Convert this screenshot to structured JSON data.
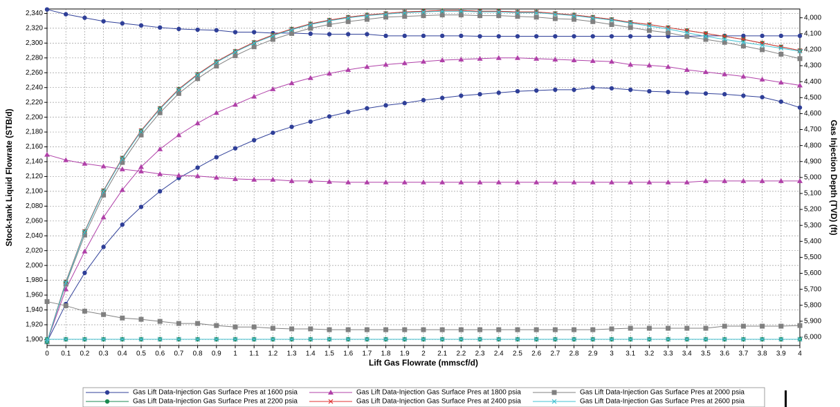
{
  "chart_data": {
    "type": "line",
    "x_label": "Lift Gas Flowrate (mmscf/d)",
    "y_label": "Stock-tank Liquid Flowrate (STB/d)",
    "y2_label": "Gas Injection Depth (TVD) (ft)",
    "x": [
      0,
      0.1,
      0.2,
      0.3,
      0.4,
      0.5,
      0.6,
      0.7,
      0.8,
      0.9,
      1,
      1.1,
      1.2,
      1.3,
      1.4,
      1.5,
      1.6,
      1.7,
      1.8,
      1.9,
      2,
      2.1,
      2.2,
      2.3,
      2.4,
      2.5,
      2.6,
      2.7,
      2.8,
      2.9,
      3,
      3.1,
      3.2,
      3.3,
      3.4,
      3.5,
      3.6,
      3.7,
      3.8,
      3.9,
      4
    ],
    "xlim": [
      0,
      4
    ],
    "xticks": [
      0,
      0.1,
      0.2,
      0.3,
      0.4,
      0.5,
      0.6,
      0.7,
      0.8,
      0.9,
      1,
      1.1,
      1.2,
      1.3,
      1.4,
      1.5,
      1.6,
      1.7,
      1.8,
      1.9,
      2,
      2.1,
      2.2,
      2.3,
      2.4,
      2.5,
      2.6,
      2.7,
      2.8,
      2.9,
      3,
      3.1,
      3.2,
      3.3,
      3.4,
      3.5,
      3.6,
      3.7,
      3.8,
      3.9,
      4
    ],
    "ylim": [
      1892,
      2346
    ],
    "yticks": [
      {
        "value": 1900,
        "label": "1,900"
      },
      {
        "value": 1920,
        "label": "1,920"
      },
      {
        "value": 1940,
        "label": "1,940"
      },
      {
        "value": 1960,
        "label": "1,960"
      },
      {
        "value": 1980,
        "label": "1,980"
      },
      {
        "value": 2000,
        "label": "2,000"
      },
      {
        "value": 2020,
        "label": "2,020"
      },
      {
        "value": 2040,
        "label": "2,040"
      },
      {
        "value": 2060,
        "label": "2,060"
      },
      {
        "value": 2080,
        "label": "2,080"
      },
      {
        "value": 2100,
        "label": "2,100"
      },
      {
        "value": 2120,
        "label": "2,120"
      },
      {
        "value": 2140,
        "label": "2,140"
      },
      {
        "value": 2160,
        "label": "2,160"
      },
      {
        "value": 2180,
        "label": "2,180"
      },
      {
        "value": 2200,
        "label": "2,200"
      },
      {
        "value": 2220,
        "label": "2,220"
      },
      {
        "value": 2240,
        "label": "2,240"
      },
      {
        "value": 2260,
        "label": "2,260"
      },
      {
        "value": 2280,
        "label": "2,280"
      },
      {
        "value": 2300,
        "label": "2,300"
      },
      {
        "value": 2320,
        "label": "2,320"
      },
      {
        "value": 2340,
        "label": "2,340"
      }
    ],
    "y2lim": [
      6052,
      3945
    ],
    "y2ticks": [
      {
        "value": 4000,
        "label": "4,000"
      },
      {
        "value": 4100,
        "label": "4,100"
      },
      {
        "value": 4200,
        "label": "4,200"
      },
      {
        "value": 4300,
        "label": "4,300"
      },
      {
        "value": 4400,
        "label": "4,400"
      },
      {
        "value": 4500,
        "label": "4,500"
      },
      {
        "value": 4600,
        "label": "4,600"
      },
      {
        "value": 4700,
        "label": "4,700"
      },
      {
        "value": 4800,
        "label": "4,800"
      },
      {
        "value": 4900,
        "label": "4,900"
      },
      {
        "value": 5000,
        "label": "5,000"
      },
      {
        "value": 5100,
        "label": "5,100"
      },
      {
        "value": 5200,
        "label": "5,200"
      },
      {
        "value": 5300,
        "label": "5,300"
      },
      {
        "value": 5400,
        "label": "5,400"
      },
      {
        "value": 5500,
        "label": "5,500"
      },
      {
        "value": 5600,
        "label": "5,600"
      },
      {
        "value": 5700,
        "label": "5,700"
      },
      {
        "value": 5800,
        "label": "5,800"
      },
      {
        "value": 5900,
        "label": "5,900"
      },
      {
        "value": 6000,
        "label": "6,000"
      }
    ],
    "grid": true,
    "legend": "bottom",
    "series": [
      {
        "name": "Gas Lift Data-Injection Gas Surface Pres at 1600 psia",
        "color": "#2f3f98",
        "marker": "circle",
        "values": [
          1897,
          1948,
          1990,
          2025,
          2055,
          2079,
          2100,
          2118,
          2132,
          2146,
          2158,
          2169,
          2179,
          2187,
          2194,
          2201,
          2207,
          2212,
          2216,
          2219,
          2223,
          2226,
          2229,
          2231,
          2233,
          2235,
          2236,
          2237,
          2237,
          2240,
          2239,
          2237,
          2235,
          2234,
          2233,
          2232,
          2231,
          2229,
          2227,
          2221,
          2213
        ],
        "y2_values": [
          3948,
          3978,
          4000,
          4022,
          4035,
          4048,
          4061,
          4070,
          4075,
          4078,
          4090,
          4090,
          4096,
          4096,
          4100,
          4103,
          4103,
          4103,
          4113,
          4113,
          4113,
          4113,
          4113,
          4116,
          4116,
          4116,
          4116,
          4116,
          4116,
          4116,
          4116,
          4116,
          4116,
          4116,
          4116,
          4113,
          4113,
          4113,
          4113,
          4113,
          4113
        ]
      },
      {
        "name": "Gas Lift Data-Injection Gas Surface Pres at 1800 psia",
        "color": "#b040a8",
        "marker": "triangle",
        "values": [
          1897,
          1968,
          2019,
          2065,
          2102,
          2133,
          2157,
          2176,
          2192,
          2206,
          2217,
          2228,
          2238,
          2246,
          2253,
          2259,
          2264,
          2268,
          2271,
          2273,
          2275,
          2277,
          2278,
          2279,
          2280,
          2280,
          2279,
          2278,
          2277,
          2276,
          2275,
          2271,
          2270,
          2268,
          2264,
          2261,
          2258,
          2255,
          2251,
          2247,
          2243
        ],
        "y2_values": [
          4857,
          4891,
          4913,
          4930,
          4948,
          4961,
          4978,
          4987,
          4991,
          5000,
          5009,
          5013,
          5013,
          5022,
          5022,
          5026,
          5030,
          5030,
          5030,
          5030,
          5030,
          5030,
          5030,
          5030,
          5030,
          5030,
          5030,
          5030,
          5030,
          5030,
          5030,
          5030,
          5030,
          5030,
          5030,
          5022,
          5022,
          5022,
          5022,
          5022,
          5022
        ]
      },
      {
        "name": "Gas Lift Data-Injection Gas Surface Pres at 2000 psia",
        "color": "#808080",
        "marker": "square",
        "values": [
          1897,
          1975,
          2041,
          2095,
          2139,
          2176,
          2206,
          2232,
          2252,
          2269,
          2283,
          2295,
          2305,
          2313,
          2320,
          2325,
          2329,
          2332,
          2335,
          2336,
          2337,
          2338,
          2338,
          2337,
          2337,
          2336,
          2335,
          2333,
          2332,
          2329,
          2325,
          2321,
          2317,
          2314,
          2309,
          2305,
          2301,
          2296,
          2291,
          2285,
          2279
        ],
        "y2_values": [
          5777,
          5803,
          5837,
          5858,
          5880,
          5888,
          5901,
          5914,
          5914,
          5927,
          5936,
          5936,
          5944,
          5948,
          5948,
          5953,
          5953,
          5953,
          5953,
          5953,
          5953,
          5953,
          5953,
          5953,
          5953,
          5953,
          5953,
          5953,
          5953,
          5953,
          5948,
          5944,
          5944,
          5944,
          5944,
          5944,
          5931,
          5931,
          5931,
          5931,
          5927
        ]
      },
      {
        "name": "Gas Lift Data-Injection Gas Surface Pres at 2200 psia",
        "color": "#1a8a50",
        "marker": "circle",
        "values": [
          1897,
          1978,
          2046,
          2101,
          2145,
          2182,
          2212,
          2238,
          2258,
          2275,
          2289,
          2301,
          2311,
          2319,
          2326,
          2331,
          2335,
          2338,
          2340,
          2342,
          2343,
          2344,
          2344,
          2343,
          2343,
          2342,
          2342,
          2340,
          2338,
          2335,
          2332,
          2328,
          2325,
          2321,
          2317,
          2313,
          2309,
          2305,
          2300,
          2295,
          2290
        ],
        "y2_values": [
          6013,
          6013,
          6013,
          6013,
          6013,
          6013,
          6013,
          6013,
          6013,
          6013,
          6013,
          6013,
          6013,
          6013,
          6013,
          6013,
          6013,
          6013,
          6013,
          6013,
          6013,
          6013,
          6013,
          6013,
          6013,
          6013,
          6013,
          6013,
          6013,
          6013,
          6013,
          6013,
          6013,
          6013,
          6013,
          6013,
          6013,
          6013,
          6013,
          6013,
          6013
        ]
      },
      {
        "name": "Gas Lift Data-Injection Gas Surface Pres at 2400 psia",
        "color": "#e03030",
        "marker": "x",
        "values": [
          1897,
          1978,
          2046,
          2101,
          2145,
          2182,
          2212,
          2238,
          2258,
          2275,
          2289,
          2301,
          2311,
          2319,
          2326,
          2331,
          2335,
          2338,
          2340,
          2342,
          2343,
          2344,
          2344,
          2343,
          2343,
          2342,
          2342,
          2340,
          2338,
          2335,
          2332,
          2328,
          2325,
          2321,
          2317,
          2313,
          2309,
          2305,
          2300,
          2295,
          2290
        ],
        "y2_values": [
          6013,
          6013,
          6013,
          6013,
          6013,
          6013,
          6013,
          6013,
          6013,
          6013,
          6013,
          6013,
          6013,
          6013,
          6013,
          6013,
          6013,
          6013,
          6013,
          6013,
          6013,
          6013,
          6013,
          6013,
          6013,
          6013,
          6013,
          6013,
          6013,
          6013,
          6013,
          6013,
          6013,
          6013,
          6013,
          6013,
          6013,
          6013,
          6013,
          6013,
          6013
        ]
      },
      {
        "name": "Gas Lift Data-Injection Gas Surface Pres at 2600 psia",
        "color": "#40c0d0",
        "marker": "x",
        "values": [
          1897,
          1977,
          2045,
          2100,
          2144,
          2181,
          2211,
          2237,
          2257,
          2274,
          2288,
          2300,
          2310,
          2318,
          2325,
          2330,
          2334,
          2337,
          2339,
          2341,
          2342,
          2343,
          2343,
          2342,
          2342,
          2341,
          2341,
          2339,
          2337,
          2334,
          2331,
          2327,
          2323,
          2319,
          2314,
          2309,
          2305,
          2301,
          2297,
          2293,
          2289
        ],
        "y2_values": [
          6013,
          6013,
          6013,
          6013,
          6013,
          6013,
          6013,
          6013,
          6013,
          6013,
          6013,
          6013,
          6013,
          6013,
          6013,
          6013,
          6013,
          6013,
          6013,
          6013,
          6013,
          6013,
          6013,
          6013,
          6013,
          6013,
          6013,
          6013,
          6013,
          6013,
          6013,
          6013,
          6013,
          6013,
          6013,
          6013,
          6013,
          6013,
          6013,
          6013,
          6013
        ]
      }
    ]
  }
}
